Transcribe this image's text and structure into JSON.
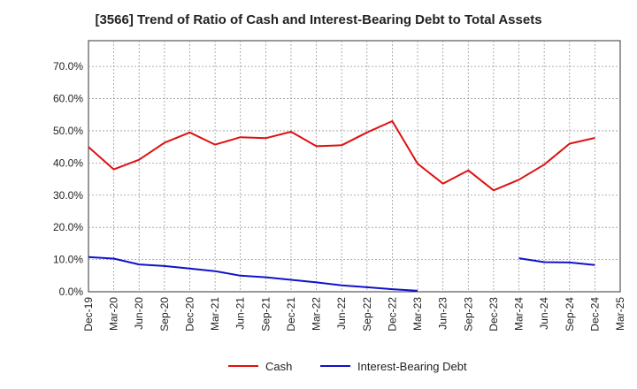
{
  "chart_data": {
    "type": "line",
    "title": "[3566]  Trend of Ratio of Cash and Interest-Bearing Debt to Total Assets",
    "xlabel": "",
    "ylabel": "",
    "categories": [
      "Dec-19",
      "Mar-20",
      "Jun-20",
      "Sep-20",
      "Dec-20",
      "Mar-21",
      "Jun-21",
      "Sep-21",
      "Dec-21",
      "Mar-22",
      "Jun-22",
      "Sep-22",
      "Dec-22",
      "Mar-23",
      "Jun-23",
      "Sep-23",
      "Dec-23",
      "Mar-24",
      "Jun-24",
      "Sep-24",
      "Dec-24",
      "Mar-25"
    ],
    "ylim": [
      0,
      78
    ],
    "yticks": [
      0,
      10,
      20,
      30,
      40,
      50,
      60,
      70
    ],
    "ytick_labels": [
      "0.0%",
      "10.0%",
      "20.0%",
      "30.0%",
      "40.0%",
      "50.0%",
      "60.0%",
      "70.0%"
    ],
    "grid": true,
    "legend_position": "bottom",
    "series": [
      {
        "name": "Cash",
        "color": "#dd1111",
        "values": [
          45.0,
          38.0,
          41.0,
          46.3,
          49.5,
          45.7,
          48.0,
          47.7,
          49.7,
          45.2,
          45.5,
          49.5,
          53.0,
          39.8,
          33.6,
          37.7,
          31.5,
          34.8,
          39.5,
          46.0,
          47.8,
          null
        ]
      },
      {
        "name": "Interest-Bearing Debt",
        "color": "#1111cc",
        "values": [
          10.8,
          10.3,
          8.5,
          8.0,
          7.2,
          6.4,
          5.0,
          4.5,
          3.7,
          2.9,
          2.0,
          1.4,
          0.8,
          0.3,
          null,
          null,
          null,
          10.4,
          9.2,
          9.1,
          8.3,
          null
        ]
      }
    ]
  }
}
